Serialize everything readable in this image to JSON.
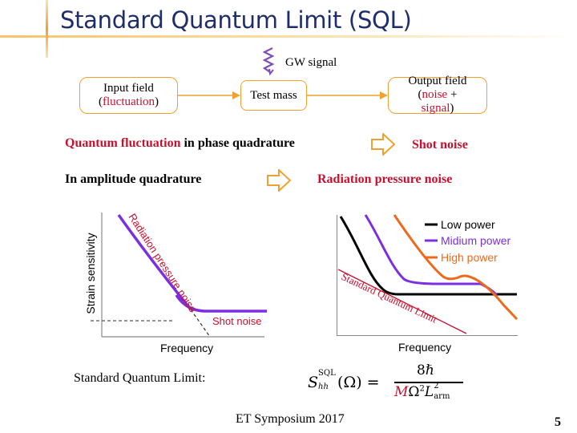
{
  "title": "Standard Quantum Limit (SQL)",
  "gw_signal": "GW signal",
  "boxes": {
    "input_field": {
      "line1": "Input field",
      "line2": "fluctuation"
    },
    "test_mass": "Test mass",
    "output_field": {
      "line1": "Output field",
      "noise": "noise",
      "plus": "+",
      "signal": "signal"
    }
  },
  "phase_line": {
    "red": "Quantum fluctuation",
    "rest": "in phase quadrature",
    "result": "Shot noise"
  },
  "amplitude_line": {
    "left": "In amplitude quadrature",
    "result": "Radiation pressure noise"
  },
  "left_plot": {
    "ylabel": "Strain sensitivity",
    "xlabel": "Frequency",
    "rp_label": "Radiation pressure noise",
    "shot_label": "Shot noise"
  },
  "right_plot": {
    "xlabel": "Frequency",
    "sql_label": "Standard Quantum Limit",
    "legend": [
      {
        "name": "Low power",
        "color": "#000000"
      },
      {
        "name": "Midium power",
        "color": "#7b2fe0"
      },
      {
        "name": "High power",
        "color": "#ee6a1a"
      }
    ]
  },
  "sql_caption": "Standard Quantum Limit:",
  "formula": {
    "lhs": "S",
    "sup": "SQL",
    "sub": "hh",
    "arg": "(Ω) =",
    "num": "8ℏ",
    "den_m": "M",
    "den_rest": "Ω",
    "den_l": "L",
    "den_sup": "2",
    "den_sub": "arm"
  },
  "footer": "ET Symposium 2017",
  "page_number": "5",
  "colors": {
    "accent": "#f0a030",
    "title": "#1f2d6b",
    "red": "#c8102e"
  }
}
